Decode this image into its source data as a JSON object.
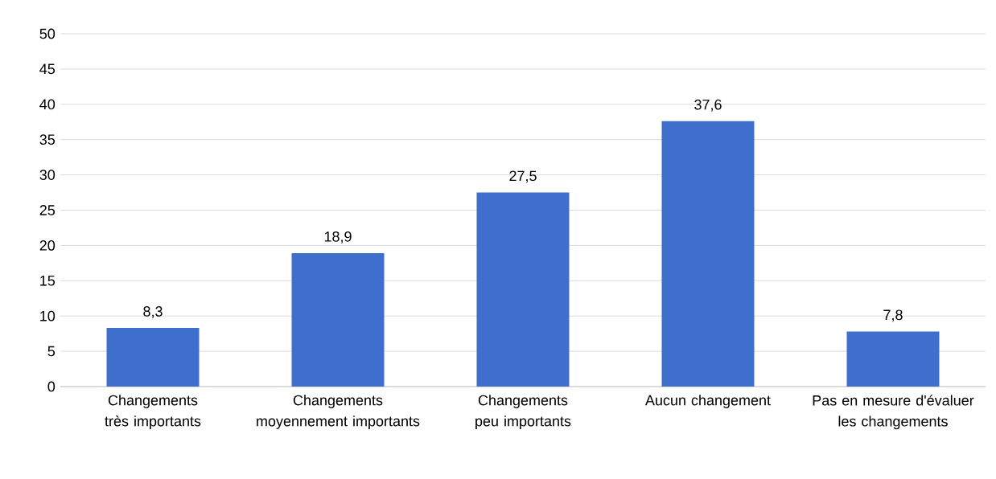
{
  "chart_data": {
    "type": "bar",
    "categories": [
      "Changements très importants",
      "Changements moyennement importants",
      "Changements peu importants",
      "Aucun changement",
      "Pas en mesure d'évaluer les changements"
    ],
    "values": [
      8.3,
      18.9,
      27.5,
      37.6,
      7.8
    ],
    "value_labels": [
      "8,3",
      "18,9",
      "27,5",
      "37,6",
      "7,8"
    ],
    "color": "#3f6fcc",
    "ylim": [
      0,
      50
    ],
    "yticks": [
      0,
      5,
      10,
      15,
      20,
      25,
      30,
      35,
      40,
      45,
      50
    ],
    "grid": "y"
  }
}
